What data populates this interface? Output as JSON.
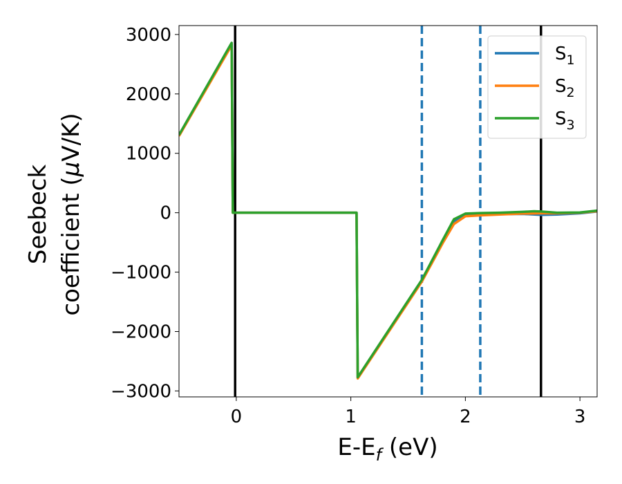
{
  "chart_data": {
    "type": "line",
    "title": "",
    "xlabel": {
      "main": "E-E",
      "sub": "f",
      "suffix": " (eV)"
    },
    "ylabel": {
      "line1": "Seebeck",
      "line2_prefix": "coefficient  (",
      "line2_greek": "μ",
      "line2_suffix": "V/K)"
    },
    "xlim": [
      -0.5,
      3.15
    ],
    "ylim": [
      -3100,
      3150
    ],
    "xticks": [
      0,
      1,
      2,
      3
    ],
    "xtick_labels": [
      "0",
      "1",
      "2",
      "3"
    ],
    "yticks": [
      3000,
      2000,
      1000,
      0,
      -1000,
      -2000,
      -3000
    ],
    "ytick_labels": [
      "3000",
      "2000",
      "1000",
      "0",
      "−1000",
      "−2000",
      "−3000"
    ],
    "grid": false,
    "legend_position": "top-right",
    "vertical_lines": [
      {
        "x": -0.01,
        "color": "#000000",
        "style": "solid"
      },
      {
        "x": 1.62,
        "color": "#1f77b4",
        "style": "dashed"
      },
      {
        "x": 2.13,
        "color": "#1f77b4",
        "style": "dashed"
      },
      {
        "x": 2.66,
        "color": "#000000",
        "style": "solid"
      }
    ],
    "series": [
      {
        "name": {
          "base": "S",
          "sub": "1"
        },
        "color": "#1f77b4",
        "x": [
          -0.5,
          -0.04,
          -0.03,
          1.04,
          1.05,
          1.06,
          1.5,
          1.62,
          1.8,
          1.9,
          2.0,
          2.13,
          2.3,
          2.5,
          2.66,
          2.8,
          3.0,
          3.15
        ],
        "y": [
          1300,
          2830,
          0,
          0,
          0,
          -2780,
          -1500,
          -1150,
          -500,
          -150,
          -40,
          -30,
          -25,
          -20,
          -35,
          -30,
          -10,
          20
        ]
      },
      {
        "name": {
          "base": "S",
          "sub": "2"
        },
        "color": "#ff7f0e",
        "x": [
          -0.5,
          -0.04,
          -0.03,
          1.04,
          1.05,
          1.06,
          1.5,
          1.62,
          1.8,
          1.9,
          2.0,
          2.13,
          2.3,
          2.5,
          2.66,
          2.8,
          3.0,
          3.15
        ],
        "y": [
          1290,
          2820,
          0,
          0,
          0,
          -2790,
          -1510,
          -1160,
          -520,
          -190,
          -60,
          -45,
          -30,
          -15,
          -10,
          -10,
          0,
          25
        ]
      },
      {
        "name": {
          "base": "S",
          "sub": "3"
        },
        "color": "#2ca02c",
        "x": [
          -0.5,
          -0.04,
          -0.03,
          1.04,
          1.05,
          1.06,
          1.5,
          1.62,
          1.8,
          1.9,
          2.0,
          2.13,
          2.3,
          2.5,
          2.6,
          2.66,
          2.8,
          3.0,
          3.15
        ],
        "y": [
          1310,
          2860,
          0,
          0,
          0,
          -2770,
          -1480,
          -1130,
          -470,
          -110,
          -15,
          -5,
          0,
          15,
          25,
          20,
          0,
          5,
          35
        ]
      }
    ]
  }
}
